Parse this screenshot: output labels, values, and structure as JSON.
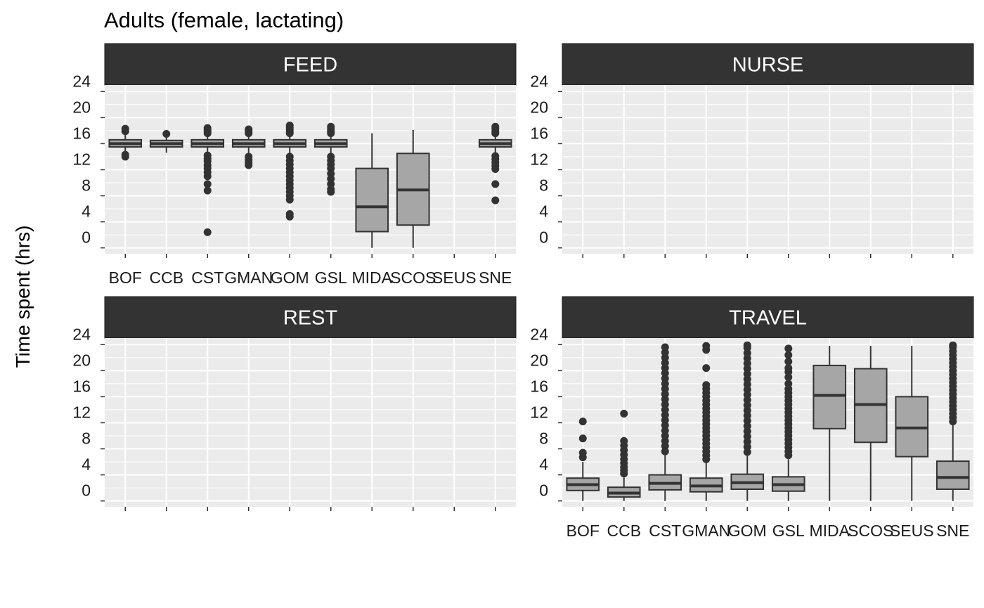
{
  "chart_data": {
    "type": "boxplot",
    "title": "Adults (female, lactating)",
    "ylabel": "Time spent (hrs)",
    "xlabel": "",
    "ylim": [
      -0.9,
      25
    ],
    "y_ticks": [
      0,
      4,
      8,
      12,
      16,
      20,
      24
    ],
    "categories": [
      "BOF",
      "CCB",
      "CST",
      "GMAN",
      "GOM",
      "GSL",
      "MIDA",
      "SCOS",
      "SEUS",
      "SNE"
    ],
    "grid": "on",
    "colors": {
      "panel_bg": "#ebebeb",
      "grid": "#ffffff",
      "strip_bg": "#333333",
      "box_fill": "#a6a6a6",
      "box_line": "#333333",
      "outlier": "#333333"
    },
    "facets": [
      {
        "name": "FEED",
        "show_x_labels": true,
        "boxes": [
          {
            "category": "BOF",
            "q1": 15.5,
            "median": 16,
            "q3": 16.6,
            "whisker_low": 14.6,
            "whisker_high": 17.4,
            "outliers": [
              14.0,
              14.3,
              17.9,
              18.3
            ]
          },
          {
            "category": "CCB",
            "q1": 15.5,
            "median": 16,
            "q3": 16.5,
            "whisker_low": 14.6,
            "whisker_high": 17.0,
            "outliers": [
              17.5
            ]
          },
          {
            "category": "CST",
            "q1": 15.5,
            "median": 16,
            "q3": 16.6,
            "whisker_low": 14.4,
            "whisker_high": 17.4,
            "outliers": [
              2.4,
              8.8,
              9.8,
              11.0,
              11.6,
              12.2,
              12.7,
              13.3,
              13.7,
              14.2,
              17.6,
              17.9,
              18.1,
              18.4
            ]
          },
          {
            "category": "GMAN",
            "q1": 15.5,
            "median": 16,
            "q3": 16.6,
            "whisker_low": 14.6,
            "whisker_high": 17.4,
            "outliers": [
              12.7,
              13.1,
              13.5,
              14.0,
              17.6,
              17.9,
              18.2
            ]
          },
          {
            "category": "GOM",
            "q1": 15.5,
            "median": 16,
            "q3": 16.6,
            "whisker_low": 14.4,
            "whisker_high": 17.4,
            "outliers": [
              4.8,
              5.2,
              7.4,
              8.0,
              8.6,
              9.2,
              9.8,
              10.4,
              11.0,
              11.6,
              12.2,
              12.8,
              13.4,
              14.0,
              17.6,
              17.9,
              18.2,
              18.5,
              18.8
            ]
          },
          {
            "category": "GSL",
            "q1": 15.5,
            "median": 16,
            "q3": 16.6,
            "whisker_low": 14.4,
            "whisker_high": 17.4,
            "outliers": [
              8.6,
              9.0,
              9.8,
              10.6,
              11.4,
              12.2,
              12.8,
              13.4,
              14.0,
              17.6,
              17.9,
              18.2,
              18.6
            ]
          },
          {
            "category": "MIDA",
            "q1": 2.5,
            "median": 6.3,
            "q3": 12.2,
            "whisker_low": 0,
            "whisker_high": 17.6,
            "outliers": []
          },
          {
            "category": "SCOS",
            "q1": 3.5,
            "median": 8.9,
            "q3": 14.5,
            "whisker_low": 0,
            "whisker_high": 18.1,
            "outliers": []
          },
          {
            "category": "SNE",
            "q1": 15.5,
            "median": 16,
            "q3": 16.6,
            "whisker_low": 14.4,
            "whisker_high": 17.4,
            "outliers": [
              7.3,
              9.8,
              12.1,
              12.6,
              13.1,
              13.6,
              14.1,
              17.6,
              17.9,
              18.3,
              18.6
            ]
          }
        ]
      },
      {
        "name": "NURSE",
        "show_x_labels": false,
        "boxes": []
      },
      {
        "name": "REST",
        "show_x_labels": false,
        "boxes": []
      },
      {
        "name": "TRAVEL",
        "show_x_labels": true,
        "boxes": [
          {
            "category": "BOF",
            "q1": 1.6,
            "median": 2.5,
            "q3": 3.5,
            "whisker_low": 0,
            "whisker_high": 6.0,
            "outliers": [
              6.7,
              7.4,
              9.6,
              12.2
            ]
          },
          {
            "category": "CCB",
            "q1": 0.6,
            "median": 1.2,
            "q3": 2.1,
            "whisker_low": 0,
            "whisker_high": 3.6,
            "outliers": [
              4.2,
              4.7,
              5.2,
              5.8,
              6.4,
              7.1,
              7.8,
              8.5,
              9.2,
              13.4
            ]
          },
          {
            "category": "CST",
            "q1": 1.7,
            "median": 2.7,
            "q3": 4.0,
            "whisker_low": 0,
            "whisker_high": 7.2,
            "outliers": [
              7.6,
              8.4,
              9.2,
              10.0,
              10.8,
              11.6,
              12.4,
              13.2,
              14.0,
              14.8,
              15.6,
              16.4,
              17.2,
              18.0,
              18.8,
              19.6,
              20.4,
              21.2,
              22.0,
              22.8,
              23.6
            ]
          },
          {
            "category": "GMAN",
            "q1": 1.4,
            "median": 2.3,
            "q3": 3.5,
            "whisker_low": 0,
            "whisker_high": 5.9,
            "outliers": [
              6.4,
              7.0,
              7.6,
              8.2,
              8.8,
              9.4,
              10.0,
              10.6,
              11.2,
              11.8,
              12.4,
              13.0,
              13.6,
              14.2,
              14.8,
              15.4,
              16.0,
              16.6,
              17.2,
              17.8,
              20.4,
              23.2,
              23.8
            ]
          },
          {
            "category": "GOM",
            "q1": 1.8,
            "median": 2.8,
            "q3": 4.1,
            "whisker_low": 0,
            "whisker_high": 7.1,
            "outliers": [
              7.5,
              8.3,
              9.1,
              9.9,
              10.7,
              11.5,
              12.3,
              13.1,
              13.9,
              14.7,
              15.5,
              16.3,
              17.1,
              17.9,
              18.7,
              19.5,
              20.3,
              21.1,
              21.9,
              22.7,
              23.5,
              23.9
            ]
          },
          {
            "category": "GSL",
            "q1": 1.5,
            "median": 2.5,
            "q3": 3.7,
            "whisker_low": 0,
            "whisker_high": 6.4,
            "outliers": [
              7.0,
              7.6,
              8.2,
              8.8,
              9.4,
              10.0,
              10.6,
              11.2,
              11.8,
              12.4,
              13.0,
              13.6,
              14.2,
              14.8,
              15.4,
              16.0,
              16.6,
              17.2,
              18.0,
              19.0,
              19.8,
              20.4,
              21.4,
              22.4,
              23.4
            ]
          },
          {
            "category": "MIDA",
            "q1": 11.1,
            "median": 16.2,
            "q3": 20.8,
            "whisker_low": 0,
            "whisker_high": 23.8,
            "outliers": []
          },
          {
            "category": "SCOS",
            "q1": 9.0,
            "median": 14.8,
            "q3": 20.3,
            "whisker_low": 0,
            "whisker_high": 23.8,
            "outliers": []
          },
          {
            "category": "SEUS",
            "q1": 6.8,
            "median": 11.2,
            "q3": 16.0,
            "whisker_low": 0,
            "whisker_high": 23.8,
            "outliers": []
          },
          {
            "category": "SNE",
            "q1": 1.8,
            "median": 3.6,
            "q3": 6.1,
            "whisker_low": 0,
            "whisker_high": 11.8,
            "outliers": [
              12.2,
              12.8,
              13.4,
              14.0,
              14.6,
              15.2,
              15.8,
              16.4,
              17.0,
              17.6,
              18.2,
              18.8,
              19.4,
              20.0,
              20.6,
              21.2,
              21.8,
              22.4,
              23.0,
              23.6,
              23.9
            ]
          }
        ]
      }
    ]
  }
}
